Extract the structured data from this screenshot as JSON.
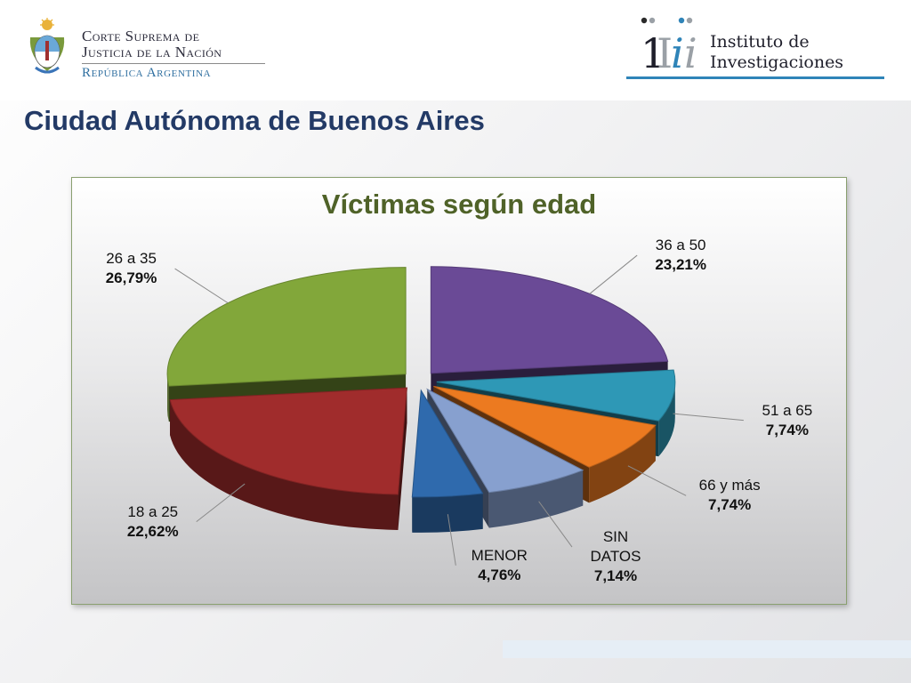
{
  "header": {
    "court_line1": "Corte Suprema de",
    "court_line2": "Justicia de la Nación",
    "court_country": "República Argentina",
    "institute_line1": "Instituto de",
    "institute_line2": "Investigaciones"
  },
  "page": {
    "title": "Ciudad Autónoma de Buenos Aires"
  },
  "colors": {
    "title": "#233a66",
    "chart_title": "#4f6228",
    "accent": "#2f84b8"
  },
  "chart_data": {
    "type": "pie",
    "title": "Víctimas según edad",
    "style": "3d-exploded",
    "categories": [
      "36 a 50",
      "51 a 65",
      "66 y más",
      "SIN DATOS",
      "MENOR",
      "18 a 25",
      "26 a 35"
    ],
    "values": [
      23.21,
      7.74,
      7.74,
      7.14,
      4.76,
      22.62,
      26.79
    ],
    "value_labels": [
      "23,21%",
      "7,74%",
      "7,74%",
      "7,14%",
      "4,76%",
      "22,62%",
      "26,79%"
    ],
    "colors": [
      "#6a4a96",
      "#2e98b6",
      "#ec7a20",
      "#87a0cf",
      "#2f6aad",
      "#a02c2c",
      "#82a73a"
    ],
    "legend": "none"
  }
}
